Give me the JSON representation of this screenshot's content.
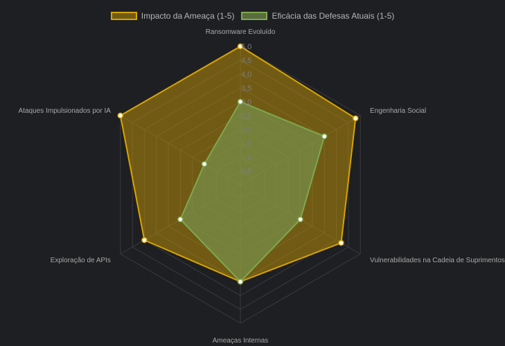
{
  "chart_data": {
    "type": "radar",
    "categories": [
      "Ransomware Evoluído",
      "Engenharia Social",
      "Vulnerabilidades na Cadeia de Suprimentos",
      "Ameaças Internas",
      "Exploração de APIs",
      "Ataques Impulsionados por IA"
    ],
    "series": [
      {
        "name": "Impacto da Ameaça (1-5)",
        "values": [
          5.0,
          4.8,
          4.2,
          3.5,
          4.0,
          5.0
        ],
        "border_color": "#d9a400",
        "fill_color": "rgba(183,141,10,0.55)"
      },
      {
        "name": "Eficácia das Defesas Atuais (1-5)",
        "values": [
          3.0,
          3.5,
          2.5,
          3.5,
          2.5,
          1.5
        ],
        "border_color": "#7fa84e",
        "fill_color": "rgba(120,150,80,0.65)"
      }
    ],
    "r_range": [
      0,
      5
    ],
    "ticks": [
      "0,5",
      "1,0",
      "1,5",
      "2,0",
      "2,5",
      "3,0",
      "3,5",
      "4,0",
      "4,5",
      "5,0"
    ],
    "grid": true,
    "legend_position": "top"
  }
}
